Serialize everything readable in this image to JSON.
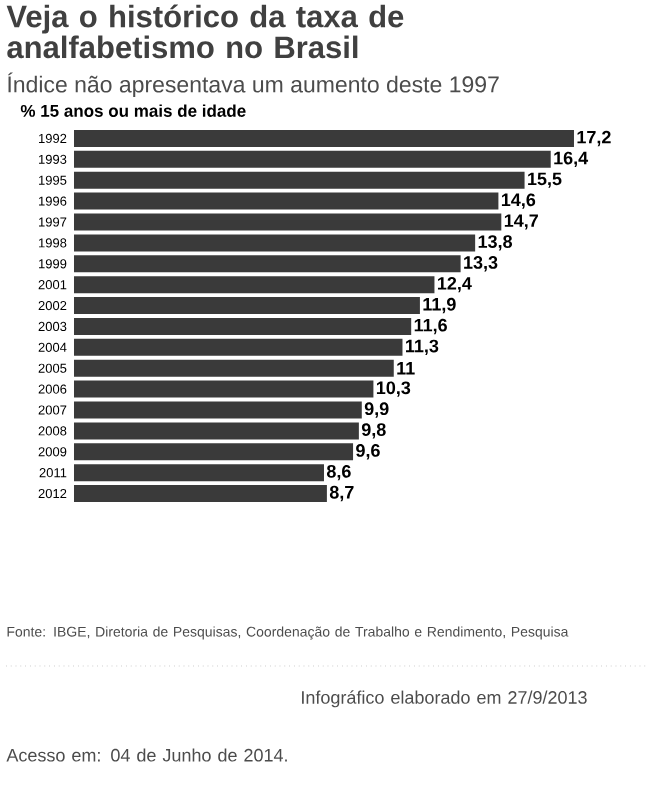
{
  "chart_data": {
    "type": "bar",
    "orientation": "horizontal",
    "title": "Veja o histórico da taxa de analfabetismo no Brasil",
    "subtitle": "Índice não apresentava um aumento deste 1997",
    "xlabel": "%  15 anos ou mais de idade",
    "categories": [
      "1992",
      "1993",
      "1995",
      "1996",
      "1997",
      "1998",
      "1999",
      "2001",
      "2002",
      "2003",
      "2004",
      "2005",
      "2006",
      "2007",
      "2008",
      "2009",
      "2011",
      "2012"
    ],
    "values": [
      17.2,
      16.4,
      15.5,
      14.6,
      14.7,
      13.8,
      13.3,
      12.4,
      11.9,
      11.6,
      11.3,
      11,
      10.3,
      9.9,
      9.8,
      9.6,
      8.6,
      8.7
    ],
    "value_labels": [
      "17,2",
      "16,4",
      "15,5",
      "14,6",
      "14,7",
      "13,8",
      "13,3",
      "12,4",
      "11,9",
      "11,6",
      "11,3",
      "11",
      "10,3",
      "9,9",
      "9,8",
      "9,6",
      "8,6",
      "8,7"
    ],
    "color": "#3a3a3a",
    "annotations": [
      "Fonte: IBGE, Diretoria de Pesquisas, Coordenação de Trabalho e Rendimento, Pesquisa",
      "Infográfico elaborado em 27/9/2013",
      "Acesso em: 04 de Junho de 2014."
    ]
  }
}
